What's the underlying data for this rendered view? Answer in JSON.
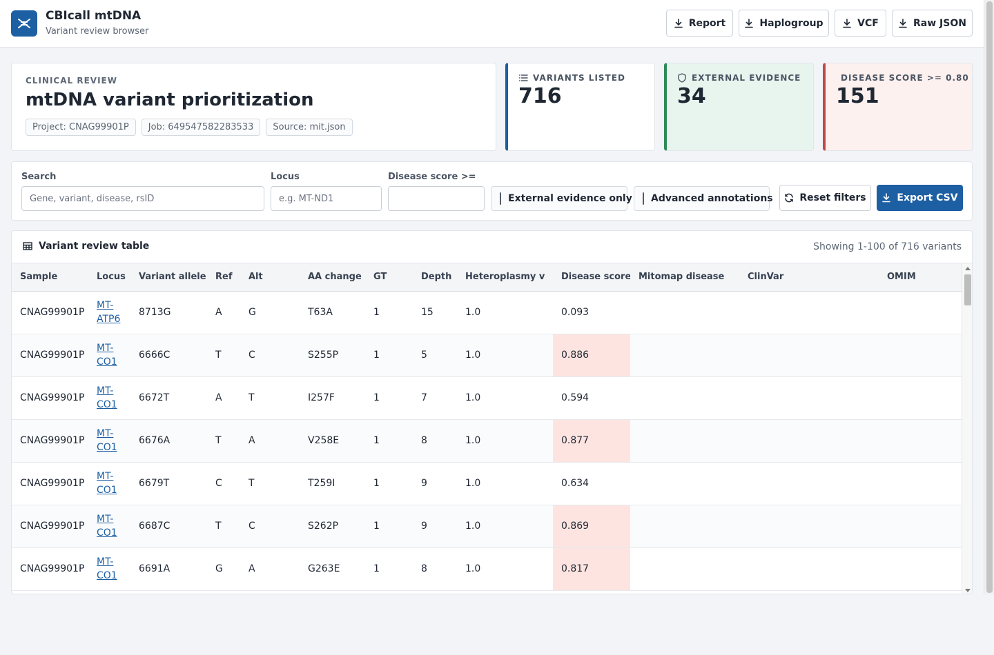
{
  "app": {
    "title": "CBIcall mtDNA",
    "subtitle": "Variant review browser",
    "logo_icon": "dna-icon"
  },
  "downloads": [
    {
      "label": "Report",
      "icon": "download-icon"
    },
    {
      "label": "Haplogroup",
      "icon": "download-icon"
    },
    {
      "label": "VCF",
      "icon": "download-icon"
    },
    {
      "label": "Raw JSON",
      "icon": "download-icon"
    }
  ],
  "hero": {
    "eyebrow": "CLINICAL REVIEW",
    "title": "mtDNA variant prioritization",
    "chips": [
      "Project: CNAG99901P",
      "Job: 649547582283533",
      "Source: mit.json"
    ]
  },
  "stats": [
    {
      "label": "VARIANTS LISTED",
      "value": "716",
      "icon": "list-icon",
      "accent": "#1d5fa3",
      "bg": "#ffffff"
    },
    {
      "label": "EXTERNAL EVIDENCE",
      "value": "34",
      "icon": "shield-icon",
      "accent": "#2e8a57",
      "bg": "#e8f5ee"
    },
    {
      "label": "DISEASE SCORE >= 0.80",
      "value": "151",
      "icon": "warning-icon",
      "accent": "#c04848",
      "bg": "#fdf1ef"
    }
  ],
  "filters": {
    "search_label": "Search",
    "search_placeholder": "Gene, variant, disease, rsID",
    "search_value": "",
    "locus_label": "Locus",
    "locus_placeholder": "e.g. MT-ND1",
    "locus_value": "",
    "score_label": "Disease score >=",
    "score_value": "",
    "external_only_label": "External evidence only",
    "external_only_checked": false,
    "advanced_label": "Advanced annotations",
    "advanced_checked": false,
    "reset_label": "Reset filters",
    "export_label": "Export CSV"
  },
  "table": {
    "title": "Variant review table",
    "count_text": "Showing 1-100 of 716 variants",
    "columns": [
      "Sample",
      "Locus",
      "Variant allele",
      "Ref",
      "Alt",
      "AA change",
      "GT",
      "Depth",
      "Heteroplasmy v",
      "Disease score",
      "Mitomap disease",
      "ClinVar",
      "OMIM"
    ],
    "rows": [
      {
        "sample": "CNAG99901P",
        "locus": "MT-ATP6",
        "allele": "8713G",
        "ref": "A",
        "alt": "G",
        "aa": "T63A",
        "gt": "1",
        "depth": "15",
        "het": "1.0",
        "score": "0.093",
        "mitomap": "",
        "clinvar": "",
        "omim": ""
      },
      {
        "sample": "CNAG99901P",
        "locus": "MT-CO1",
        "allele": "6666C",
        "ref": "T",
        "alt": "C",
        "aa": "S255P",
        "gt": "1",
        "depth": "5",
        "het": "1.0",
        "score": "0.886",
        "mitomap": "",
        "clinvar": "",
        "omim": ""
      },
      {
        "sample": "CNAG99901P",
        "locus": "MT-CO1",
        "allele": "6672T",
        "ref": "A",
        "alt": "T",
        "aa": "I257F",
        "gt": "1",
        "depth": "7",
        "het": "1.0",
        "score": "0.594",
        "mitomap": "",
        "clinvar": "",
        "omim": ""
      },
      {
        "sample": "CNAG99901P",
        "locus": "MT-CO1",
        "allele": "6676A",
        "ref": "T",
        "alt": "A",
        "aa": "V258E",
        "gt": "1",
        "depth": "8",
        "het": "1.0",
        "score": "0.877",
        "mitomap": "",
        "clinvar": "",
        "omim": ""
      },
      {
        "sample": "CNAG99901P",
        "locus": "MT-CO1",
        "allele": "6679T",
        "ref": "C",
        "alt": "T",
        "aa": "T259I",
        "gt": "1",
        "depth": "9",
        "het": "1.0",
        "score": "0.634",
        "mitomap": "",
        "clinvar": "",
        "omim": ""
      },
      {
        "sample": "CNAG99901P",
        "locus": "MT-CO1",
        "allele": "6687C",
        "ref": "T",
        "alt": "C",
        "aa": "S262P",
        "gt": "1",
        "depth": "9",
        "het": "1.0",
        "score": "0.869",
        "mitomap": "",
        "clinvar": "",
        "omim": ""
      },
      {
        "sample": "CNAG99901P",
        "locus": "MT-CO1",
        "allele": "6691A",
        "ref": "G",
        "alt": "A",
        "aa": "G263E",
        "gt": "1",
        "depth": "8",
        "het": "1.0",
        "score": "0.817",
        "mitomap": "",
        "clinvar": "",
        "omim": ""
      }
    ]
  }
}
